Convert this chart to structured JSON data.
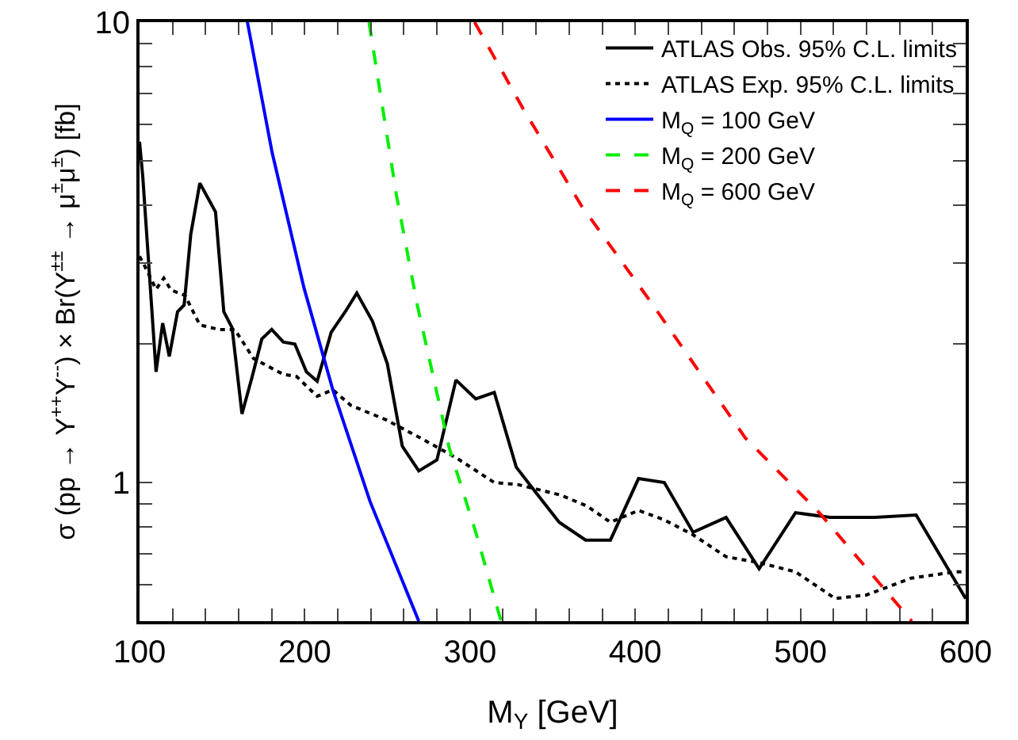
{
  "chart_data": {
    "type": "line",
    "xlabel": "M$_{Y}$ [GeV]",
    "ylabel": "σ (pp → Y$^{++}$Y$^{--}$) × Br(Y$^{±±}$ → μ$^{±}$μ$^{±}$) [fb]",
    "log": "y",
    "grid": false,
    "legend": "top right",
    "marker": "none",
    "xlim": [
      100,
      600
    ],
    "xticks": [
      100,
      {
        "value": 120,
        "label": null
      },
      {
        "value": 140,
        "label": null
      },
      {
        "value": 160,
        "label": null
      },
      {
        "value": 180,
        "label": null
      },
      200,
      {
        "value": 220,
        "label": null
      },
      {
        "value": 240,
        "label": null
      },
      {
        "value": 260,
        "label": null
      },
      {
        "value": 280,
        "label": null
      },
      300,
      {
        "value": 320,
        "label": null
      },
      {
        "value": 340,
        "label": null
      },
      {
        "value": 360,
        "label": null
      },
      {
        "value": 380,
        "label": null
      },
      400,
      {
        "value": 420,
        "label": null
      },
      {
        "value": 440,
        "label": null
      },
      {
        "value": 460,
        "label": null
      },
      {
        "value": 480,
        "label": null
      },
      500,
      {
        "value": 520,
        "label": null
      },
      {
        "value": 540,
        "label": null
      },
      {
        "value": 560,
        "label": null
      },
      {
        "value": 580,
        "label": null
      },
      600
    ],
    "ylim": [
      0.5,
      10
    ],
    "yticks": [
      {
        "value": 0.6,
        "label": null
      },
      {
        "value": 0.7,
        "label": null
      },
      {
        "value": 0.8,
        "label": null
      },
      {
        "value": 0.9,
        "label": null
      },
      1,
      {
        "value": 2,
        "label": null
      },
      {
        "value": 3,
        "label": null
      },
      {
        "value": 4,
        "label": null
      },
      {
        "value": 5,
        "label": null
      },
      {
        "value": 6,
        "label": null
      },
      {
        "value": 7,
        "label": null
      },
      {
        "value": 8,
        "label": null
      },
      {
        "value": 9,
        "label": null
      },
      10
    ],
    "series": [
      {
        "name": "ATLAS Obs. 95% C.L. limits",
        "color": "#000000",
        "line_style": "solid",
        "x": [
          100,
          102,
          110,
          114,
          118,
          123,
          127,
          131,
          136.5,
          146,
          151,
          156,
          162,
          168,
          174,
          180,
          187,
          194,
          201,
          207.5,
          216,
          224.5,
          231.5,
          241,
          250,
          259,
          269,
          280,
          291.5,
          303.5,
          314.7,
          328,
          340,
          354,
          370,
          385,
          402,
          417.6,
          435,
          455,
          475,
          497,
          518,
          545,
          570,
          600
        ],
        "values": [
          5.5,
          4.6,
          1.74,
          2.22,
          1.88,
          2.35,
          2.43,
          3.46,
          4.47,
          3.87,
          2.35,
          2.17,
          1.41,
          1.69,
          2.05,
          2.15,
          2.02,
          2.0,
          1.74,
          1.66,
          2.12,
          2.35,
          2.58,
          2.24,
          1.81,
          1.2,
          1.06,
          1.12,
          1.67,
          1.52,
          1.57,
          1.08,
          0.95,
          0.82,
          0.75,
          0.75,
          1.02,
          1.0,
          0.78,
          0.84,
          0.65,
          0.86,
          0.84,
          0.84,
          0.85,
          0.56
        ]
      },
      {
        "name": "ATLAS Exp. 95% C.L. limits",
        "color": "#000000",
        "line_style": "dotted",
        "x": [
          100,
          103,
          110,
          114.7,
          119,
          127.5,
          136.5,
          148,
          157.6,
          169,
          186.7,
          195,
          207.5,
          217,
          228,
          249,
          270,
          292,
          314.7,
          329,
          354.6,
          370.6,
          385,
          402,
          417.6,
          435,
          455,
          475,
          497,
          521,
          540,
          567,
          594,
          600
        ],
        "values": [
          3.1,
          2.96,
          2.63,
          2.78,
          2.62,
          2.55,
          2.2,
          2.15,
          2.15,
          1.86,
          1.72,
          1.7,
          1.54,
          1.59,
          1.47,
          1.37,
          1.25,
          1.13,
          1.0,
          0.99,
          0.94,
          0.89,
          0.82,
          0.87,
          0.83,
          0.77,
          0.69,
          0.67,
          0.64,
          0.56,
          0.57,
          0.62,
          0.64,
          0.64
        ]
      },
      {
        "name": "M$_{Q}$ = 100 GeV",
        "color": "#0000ff",
        "line_style": "solid",
        "x": [
          165.3,
          180.3,
          199.5,
          217,
          239.5,
          269
        ],
        "values": [
          10,
          5.2,
          2.65,
          1.59,
          0.91,
          0.5
        ]
      },
      {
        "name": "M$_{Q}$ = 200 GeV",
        "color": "#00ee00",
        "line_style": "dashed",
        "x": [
          238.9,
          255.5,
          268.2,
          287.4,
          303.5,
          318.8
        ],
        "values": [
          10,
          4.21,
          2.42,
          1.19,
          0.78,
          0.5
        ]
      },
      {
        "name": "M$_{Q}$ = 600 GeV",
        "color": "#ff0000",
        "line_style": "dashed",
        "x": [
          302.8,
          332,
          367.5,
          409,
          466.6,
          511.4,
          567.4
        ],
        "values": [
          10,
          6.5,
          3.99,
          2.48,
          1.25,
          0.86,
          0.5
        ]
      }
    ]
  }
}
